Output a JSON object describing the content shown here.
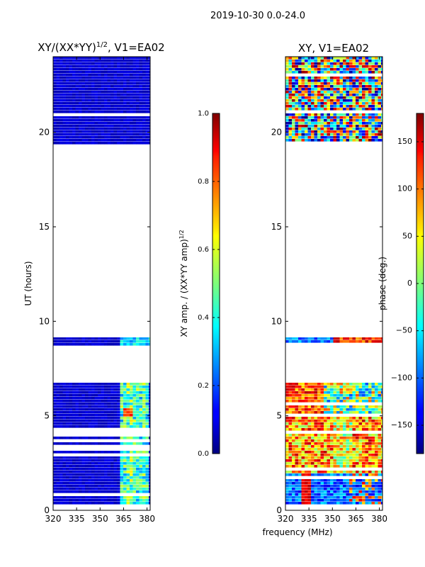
{
  "figure": {
    "suptitle": "2019-10-30 0.0-24.0",
    "xlabel_shared": "frequency (MHz)"
  },
  "chart_data": [
    {
      "type": "heatmap",
      "title": "XY/(XX*YY)^{1/2}, V1=EA02",
      "title_parts": {
        "base": "XY/(XX*YY)",
        "exponent": "1/2",
        "suffix": ", V1=EA02"
      },
      "xlabel": "frequency (MHz)",
      "ylabel": "UT (hours)",
      "xlim": [
        320,
        382
      ],
      "ylim": [
        0,
        24
      ],
      "xticks": [
        320,
        335,
        350,
        365,
        380
      ],
      "yticks": [
        0,
        5,
        10,
        15,
        20
      ],
      "quantity": "normalized XY amplitude",
      "colormap": "jet",
      "colorbar": {
        "label": "XY amp. / (XX*YY amp)^{1/2}",
        "label_parts": {
          "base": "XY amp. / (XX*YY amp)",
          "exponent": "1/2"
        },
        "range": [
          0.0,
          1.0
        ],
        "ticks": [
          "0.0",
          "0.2",
          "0.4",
          "0.6",
          "0.8",
          "1.0"
        ]
      },
      "data_blocks_ut": [
        [
          0.25,
          6.8
        ],
        [
          8.75,
          9.2
        ],
        [
          19.4,
          24.0
        ]
      ],
      "notes": "Low amplitude (~0.05) over most frequencies; elevated values 0.3-0.6 between 363-382 MHz during 0-6.8 h."
    },
    {
      "type": "heatmap",
      "title": "XY, V1=EA02",
      "xlabel": "frequency (MHz)",
      "ylabel": "",
      "xlim": [
        320,
        382
      ],
      "ylim": [
        0,
        24
      ],
      "xticks": [
        320,
        335,
        350,
        365,
        380
      ],
      "yticks": [
        0,
        5,
        10,
        15,
        20
      ],
      "quantity": "XY phase",
      "colormap": "jet",
      "colorbar": {
        "label": "phase (deg.)",
        "range": [
          -180,
          180
        ],
        "ticks": [
          "150",
          "100",
          "50",
          "0",
          "−50",
          "−100",
          "−150"
        ]
      },
      "data_blocks_ut": [
        [
          0.25,
          6.8
        ],
        [
          8.75,
          9.2
        ],
        [
          19.4,
          24.0
        ]
      ],
      "notes": "Noisy phase 19.4-24 h; structured phase with red/orange bands near 333 MHz and blue bands 0-2 h."
    }
  ]
}
